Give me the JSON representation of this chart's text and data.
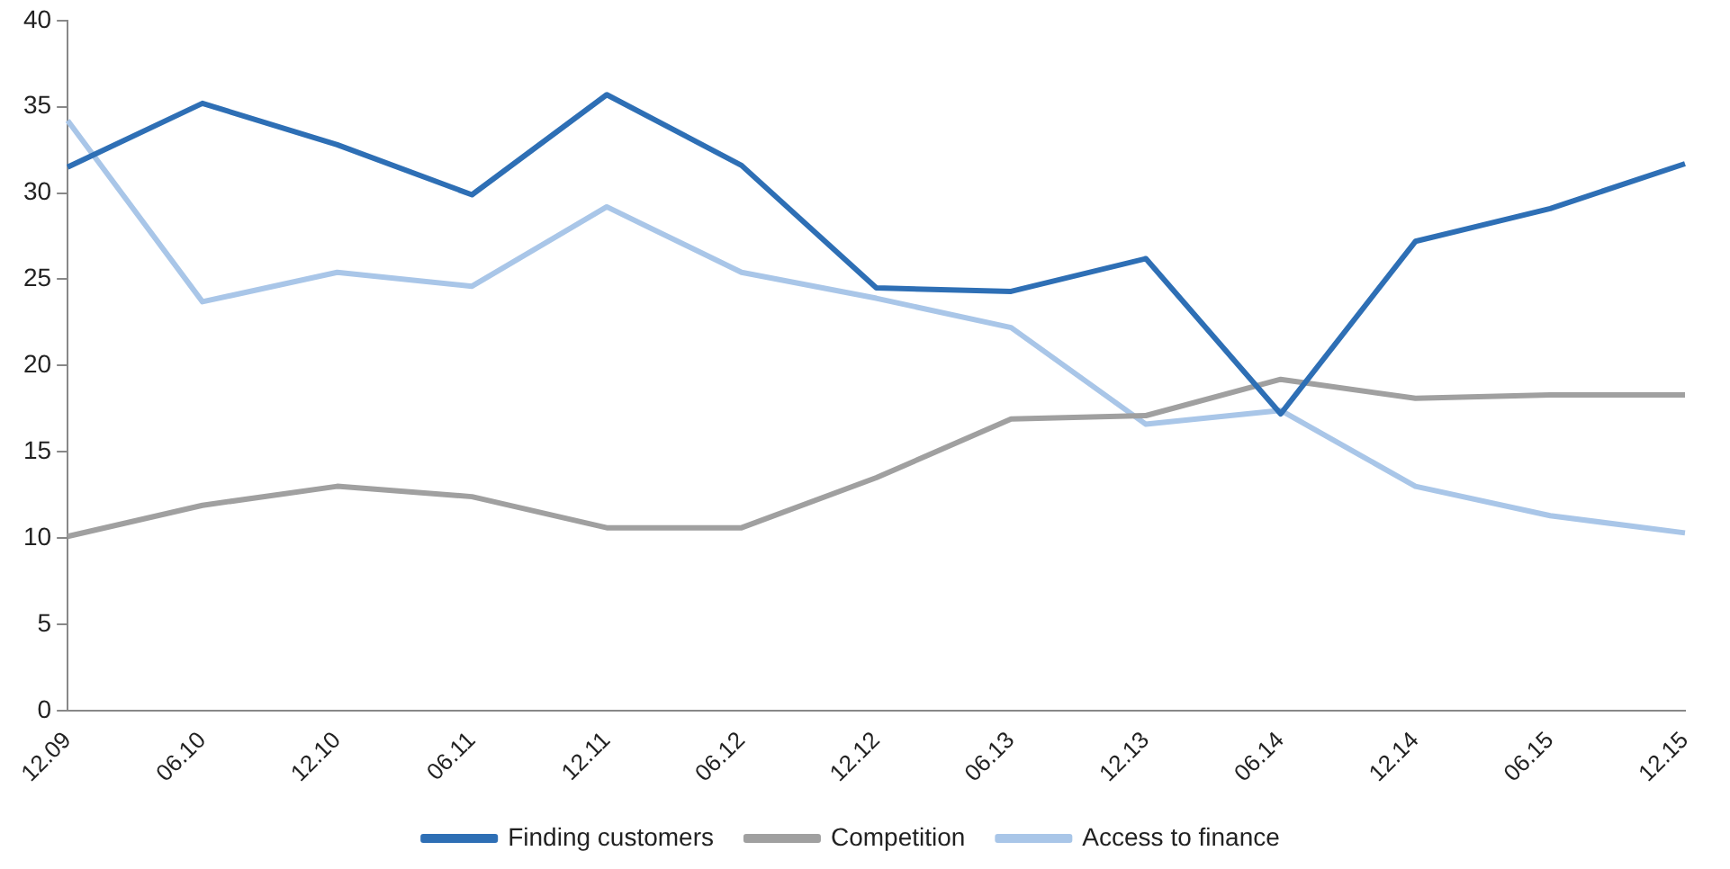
{
  "chart_data": {
    "type": "line",
    "categories": [
      "12.09",
      "06.10",
      "12.10",
      "06.11",
      "12.11",
      "06.12",
      "12.12",
      "06.13",
      "12.13",
      "06.14",
      "12.14",
      "06.15",
      "12.15"
    ],
    "series": [
      {
        "name": "Finding customers",
        "color": "#2e6fb5",
        "values": [
          31.5,
          35.2,
          32.8,
          29.9,
          35.7,
          31.6,
          24.5,
          24.3,
          26.2,
          17.2,
          27.2,
          29.1,
          31.7
        ]
      },
      {
        "name": "Competition",
        "color": "#a0a0a0",
        "values": [
          10.1,
          11.9,
          13.0,
          12.4,
          10.6,
          10.6,
          13.5,
          16.9,
          17.1,
          19.2,
          18.1,
          18.3,
          18.3
        ]
      },
      {
        "name": "Access to finance",
        "color": "#a9c6e8",
        "values": [
          34.2,
          23.7,
          25.4,
          24.6,
          29.2,
          25.4,
          23.9,
          22.2,
          16.6,
          17.4,
          13.0,
          11.3,
          10.3
        ]
      }
    ],
    "ylim": [
      0,
      40
    ],
    "yticks": [
      0,
      5,
      10,
      15,
      20,
      25,
      30,
      35,
      40
    ],
    "grid": false,
    "legend": "bottom",
    "marker": "none",
    "line_style": "solid"
  }
}
